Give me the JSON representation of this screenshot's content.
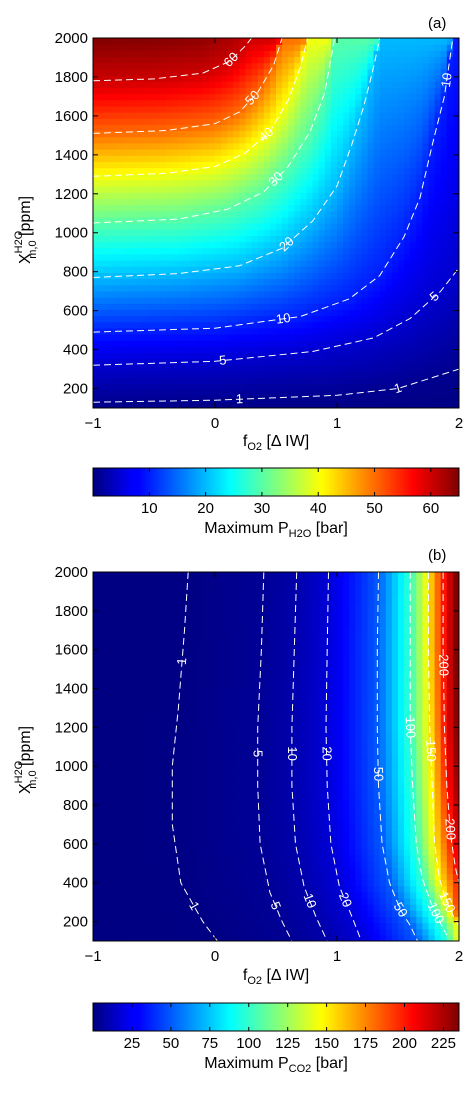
{
  "chart_data": [
    {
      "panel_label": "(a)",
      "type": "heatmap",
      "xlabel": {
        "base": "f",
        "sub": "O2",
        "rest": " [Δ IW]"
      },
      "ylabel": {
        "base": "X",
        "sup": "H2O",
        "sub": "m,0",
        "rest": " [ppm]"
      },
      "xlim": [
        -1,
        2
      ],
      "ylim": [
        100,
        2000
      ],
      "xticks": [
        -1,
        0,
        1,
        2
      ],
      "xtick_labels": [
        "−1",
        "0",
        "1",
        "2"
      ],
      "yticks": [
        200,
        400,
        600,
        800,
        1000,
        1200,
        1400,
        1600,
        1800,
        2000
      ],
      "colormap": "jet",
      "clim": [
        0,
        65
      ],
      "colorbar": {
        "ticks": [
          10,
          20,
          30,
          40,
          50,
          60
        ],
        "label": {
          "base": "Maximum P",
          "sub": "H2O",
          "rest": " [bar]"
        }
      },
      "contours": [
        {
          "level": 1,
          "label": "1",
          "points": [
            [
              -1,
              130
            ],
            [
              0,
              140
            ],
            [
              1,
              165
            ],
            [
              1.5,
              200
            ],
            [
              2,
              300
            ]
          ]
        },
        {
          "level": 5,
          "label": "5",
          "points": [
            [
              -1,
              320
            ],
            [
              0,
              340
            ],
            [
              0.8,
              390
            ],
            [
              1.3,
              460
            ],
            [
              1.6,
              560
            ],
            [
              1.85,
              700
            ],
            [
              2,
              820
            ]
          ]
        },
        {
          "level": 10,
          "label": "10",
          "points": [
            [
              -1,
              490
            ],
            [
              0,
              510
            ],
            [
              0.7,
              570
            ],
            [
              1.1,
              660
            ],
            [
              1.35,
              780
            ],
            [
              1.55,
              980
            ],
            [
              1.68,
              1180
            ],
            [
              1.78,
              1450
            ],
            [
              1.88,
              1700
            ],
            [
              1.95,
              2000
            ]
          ]
        },
        {
          "level": 20,
          "label": "20",
          "points": [
            [
              -1,
              770
            ],
            [
              -0.3,
              790
            ],
            [
              0.2,
              830
            ],
            [
              0.55,
              920
            ],
            [
              0.8,
              1060
            ],
            [
              1.0,
              1240
            ],
            [
              1.12,
              1450
            ],
            [
              1.22,
              1650
            ],
            [
              1.3,
              1850
            ],
            [
              1.35,
              2000
            ]
          ]
        },
        {
          "level": 30,
          "label": "30",
          "points": [
            [
              -1,
              1050
            ],
            [
              -0.3,
              1070
            ],
            [
              0.1,
              1120
            ],
            [
              0.4,
              1210
            ],
            [
              0.6,
              1340
            ],
            [
              0.78,
              1520
            ],
            [
              0.9,
              1720
            ],
            [
              0.98,
              2000
            ]
          ]
        },
        {
          "level": 40,
          "label": "40",
          "points": [
            [
              -1,
              1290
            ],
            [
              -0.4,
              1305
            ],
            [
              0,
              1340
            ],
            [
              0.25,
              1410
            ],
            [
              0.45,
              1520
            ],
            [
              0.6,
              1680
            ],
            [
              0.7,
              1850
            ],
            [
              0.76,
              2000
            ]
          ]
        },
        {
          "level": 50,
          "label": "50",
          "points": [
            [
              -1,
              1510
            ],
            [
              -0.4,
              1525
            ],
            [
              0,
              1560
            ],
            [
              0.2,
              1620
            ],
            [
              0.35,
              1720
            ],
            [
              0.48,
              1860
            ],
            [
              0.55,
              2000
            ]
          ]
        },
        {
          "level": 60,
          "label": "60",
          "points": [
            [
              -1,
              1780
            ],
            [
              -0.5,
              1790
            ],
            [
              -0.1,
              1820
            ],
            [
              0.12,
              1880
            ],
            [
              0.25,
              1960
            ],
            [
              0.3,
              2000
            ]
          ]
        }
      ]
    },
    {
      "panel_label": "(b)",
      "type": "heatmap",
      "xlabel": {
        "base": "f",
        "sub": "O2",
        "rest": " [Δ IW]"
      },
      "ylabel": {
        "base": "X",
        "sup": "H2O",
        "sub": "m,0",
        "rest": " [ppm]"
      },
      "xlim": [
        -1,
        2
      ],
      "ylim": [
        100,
        2000
      ],
      "xticks": [
        -1,
        0,
        1,
        2
      ],
      "xtick_labels": [
        "−1",
        "0",
        "1",
        "2"
      ],
      "yticks": [
        200,
        400,
        600,
        800,
        1000,
        1200,
        1400,
        1600,
        1800,
        2000
      ],
      "colormap": "jet",
      "clim": [
        0,
        235
      ],
      "colorbar": {
        "ticks": [
          25,
          50,
          75,
          100,
          125,
          150,
          175,
          200,
          225
        ],
        "label": {
          "base": "Maximum P",
          "sub": "CO2",
          "rest": " [bar]"
        }
      },
      "contours": [
        {
          "level": 1,
          "label": "1",
          "points": [
            [
              -0.22,
              2000
            ],
            [
              -0.25,
              1700
            ],
            [
              -0.3,
              1300
            ],
            [
              -0.35,
              1000
            ],
            [
              -0.35,
              700
            ],
            [
              -0.28,
              400
            ],
            [
              -0.1,
              200
            ],
            [
              0.02,
              100
            ]
          ]
        },
        {
          "level": 5,
          "label": "5",
          "points": [
            [
              0.4,
              2000
            ],
            [
              0.38,
              1600
            ],
            [
              0.35,
              1200
            ],
            [
              0.35,
              900
            ],
            [
              0.37,
              600
            ],
            [
              0.45,
              350
            ],
            [
              0.55,
              200
            ],
            [
              0.63,
              100
            ]
          ]
        },
        {
          "level": 10,
          "label": "10",
          "points": [
            [
              0.67,
              2000
            ],
            [
              0.65,
              1600
            ],
            [
              0.63,
              1200
            ],
            [
              0.63,
              900
            ],
            [
              0.66,
              600
            ],
            [
              0.73,
              380
            ],
            [
              0.83,
              220
            ],
            [
              0.92,
              100
            ]
          ]
        },
        {
          "level": 20,
          "label": "20",
          "points": [
            [
              0.93,
              2000
            ],
            [
              0.92,
              1600
            ],
            [
              0.91,
              1200
            ],
            [
              0.92,
              900
            ],
            [
              0.95,
              600
            ],
            [
              1.02,
              380
            ],
            [
              1.12,
              230
            ],
            [
              1.2,
              100
            ]
          ]
        },
        {
          "level": 50,
          "label": "50",
          "points": [
            [
              1.34,
              2000
            ],
            [
              1.33,
              1600
            ],
            [
              1.33,
              1200
            ],
            [
              1.34,
              900
            ],
            [
              1.37,
              600
            ],
            [
              1.43,
              400
            ],
            [
              1.52,
              260
            ],
            [
              1.6,
              180
            ],
            [
              1.66,
              100
            ]
          ]
        },
        {
          "level": 100,
          "label": "100",
          "points": [
            [
              1.6,
              2000
            ],
            [
              1.6,
              1600
            ],
            [
              1.6,
              1200
            ],
            [
              1.62,
              900
            ],
            [
              1.65,
              600
            ],
            [
              1.7,
              420
            ],
            [
              1.78,
              280
            ],
            [
              1.85,
              190
            ],
            [
              1.9,
              130
            ]
          ]
        },
        {
          "level": 150,
          "label": "150",
          "points": [
            [
              1.75,
              2000
            ],
            [
              1.75,
              1600
            ],
            [
              1.76,
              1200
            ],
            [
              1.78,
              900
            ],
            [
              1.8,
              600
            ],
            [
              1.84,
              420
            ],
            [
              1.9,
              300
            ],
            [
              1.96,
              220
            ],
            [
              2.0,
              180
            ]
          ]
        },
        {
          "level": 200,
          "label": "200",
          "points": [
            [
              1.87,
              2000
            ],
            [
              1.87,
              1600
            ],
            [
              1.88,
              1200
            ],
            [
              1.9,
              900
            ],
            [
              1.93,
              650
            ],
            [
              1.97,
              480
            ],
            [
              2.0,
              400
            ]
          ]
        }
      ]
    }
  ]
}
